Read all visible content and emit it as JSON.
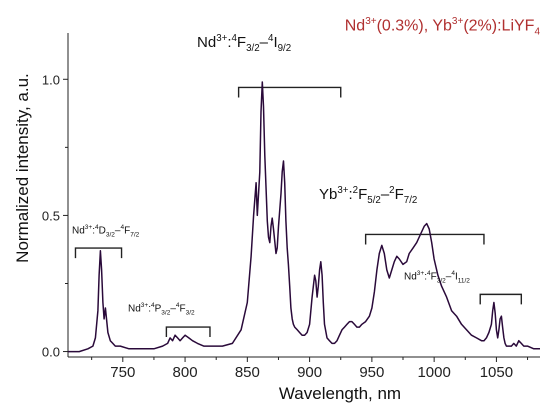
{
  "chart_data": {
    "type": "line",
    "title": "",
    "legend": {
      "ion1": "Nd",
      "ion1_charge": "3+",
      "ion1_conc": "(0.3%), ",
      "ion2": "Yb",
      "ion2_charge": "3+",
      "ion2_conc": "(2%):LiYF",
      "host_sub": "4",
      "color": "#b03030",
      "position": "top-right"
    },
    "xlabel": "Wavelength, nm",
    "ylabel": "Normalized intensity, a.u.",
    "xlim": [
      706,
      1085
    ],
    "ylim": [
      -0.02,
      1.17
    ],
    "xticks": [
      750,
      800,
      850,
      900,
      950,
      1000,
      1050
    ],
    "xtick_labels": [
      "750",
      "800",
      "850",
      "900",
      "950",
      "1000",
      "1050"
    ],
    "yticks": [
      0.0,
      0.5,
      1.0
    ],
    "ytick_labels": [
      "0.0",
      "0.5",
      "1.0"
    ],
    "grid": false,
    "line_color": "#2a0a3a",
    "series": [
      {
        "x": [
          706,
          715,
          722,
          726,
          728,
          730,
          731,
          732,
          733,
          734,
          735,
          736,
          738,
          740,
          742,
          744,
          748,
          755,
          765,
          775,
          782,
          786,
          788,
          790,
          792,
          794,
          796,
          798,
          800,
          803,
          806,
          810,
          815,
          822,
          830,
          838,
          845,
          850,
          853,
          855,
          857,
          858,
          860,
          861,
          862,
          863,
          864,
          866,
          867,
          868,
          869,
          870,
          871,
          873,
          874,
          875,
          877,
          878,
          879,
          880,
          881,
          882,
          883,
          884,
          885,
          886,
          887,
          888,
          890,
          892,
          894,
          896,
          898,
          900,
          902,
          904,
          905,
          906,
          907,
          908,
          909,
          910,
          911,
          912,
          914,
          916,
          918,
          920,
          922,
          924,
          926,
          928,
          930,
          932,
          934,
          936,
          938,
          940,
          942,
          945,
          948,
          950,
          952,
          954,
          956,
          958,
          960,
          962,
          964,
          966,
          968,
          970,
          972,
          975,
          978,
          980,
          983,
          986,
          989,
          992,
          994,
          996,
          998,
          1000,
          1003,
          1006,
          1010,
          1014,
          1018,
          1022,
          1026,
          1030,
          1034,
          1038,
          1040,
          1042,
          1044,
          1046,
          1047,
          1048,
          1049,
          1050,
          1051,
          1052,
          1053,
          1054,
          1055,
          1056,
          1057,
          1058,
          1060,
          1062,
          1064,
          1066,
          1068,
          1070,
          1072,
          1075,
          1080,
          1085
        ],
        "y": [
          0.0,
          0.0,
          0.01,
          0.02,
          0.05,
          0.15,
          0.28,
          0.37,
          0.3,
          0.18,
          0.12,
          0.16,
          0.07,
          0.04,
          0.03,
          0.02,
          0.02,
          0.01,
          0.01,
          0.01,
          0.02,
          0.03,
          0.05,
          0.04,
          0.06,
          0.05,
          0.04,
          0.05,
          0.06,
          0.05,
          0.04,
          0.03,
          0.02,
          0.02,
          0.02,
          0.03,
          0.08,
          0.18,
          0.35,
          0.5,
          0.62,
          0.5,
          0.66,
          0.88,
          0.99,
          0.9,
          0.72,
          0.48,
          0.42,
          0.4,
          0.46,
          0.49,
          0.45,
          0.36,
          0.38,
          0.46,
          0.58,
          0.66,
          0.7,
          0.62,
          0.48,
          0.38,
          0.32,
          0.24,
          0.16,
          0.12,
          0.1,
          0.09,
          0.08,
          0.07,
          0.06,
          0.06,
          0.07,
          0.1,
          0.2,
          0.28,
          0.26,
          0.2,
          0.24,
          0.3,
          0.33,
          0.28,
          0.18,
          0.1,
          0.05,
          0.04,
          0.03,
          0.03,
          0.04,
          0.06,
          0.08,
          0.09,
          0.1,
          0.11,
          0.11,
          0.1,
          0.09,
          0.09,
          0.1,
          0.11,
          0.13,
          0.16,
          0.22,
          0.3,
          0.36,
          0.39,
          0.36,
          0.3,
          0.27,
          0.3,
          0.33,
          0.35,
          0.34,
          0.32,
          0.33,
          0.36,
          0.38,
          0.4,
          0.43,
          0.46,
          0.47,
          0.45,
          0.4,
          0.34,
          0.28,
          0.24,
          0.2,
          0.15,
          0.13,
          0.1,
          0.08,
          0.06,
          0.05,
          0.04,
          0.04,
          0.05,
          0.07,
          0.1,
          0.15,
          0.18,
          0.14,
          0.08,
          0.05,
          0.08,
          0.12,
          0.13,
          0.09,
          0.05,
          0.03,
          0.02,
          0.02,
          0.02,
          0.03,
          0.02,
          0.04,
          0.03,
          0.02,
          0.02,
          0.01,
          0.01
        ]
      }
    ],
    "annotations": {
      "f92": {
        "ion": "Nd",
        "charge": "3+",
        "sep": ":",
        "sup1": "4",
        "lev1": "F",
        "sub1": "3/2",
        "dash": "–",
        "sup2": "4",
        "lev2": "I",
        "sub2": "9/2",
        "bracket_x": [
          843,
          925
        ],
        "bracket_y": 0.97
      },
      "yb": {
        "ion": "Yb",
        "charge": "3+",
        "sep": ":",
        "sup1": "2",
        "lev1": "F",
        "sub1": "5/2",
        "dash": "–",
        "sup2": "2",
        "lev2": "F",
        "sub2": "7/2",
        "bracket_x": [
          945,
          1040
        ],
        "bracket_y": 0.43
      },
      "d72": {
        "ion": "Nd",
        "charge": "3+",
        "sep": ":",
        "sup1": "4",
        "lev1": "D",
        "sub1": "3/2",
        "dash": "–",
        "sup2": "4",
        "lev2": "F",
        "sub2": "7/2",
        "bracket_x": [
          712,
          749
        ],
        "bracket_y": 0.38
      },
      "p32": {
        "ion": "Nd",
        "charge": "3+",
        "sep": ":",
        "sup1": "4",
        "lev1": "P",
        "sub1": "3/2",
        "dash": "–",
        "sup2": "4",
        "lev2": "F",
        "sub2": "3/2",
        "bracket_x": [
          785,
          820
        ],
        "bracket_y": 0.09
      },
      "f112": {
        "ion": "Nd",
        "charge": "3+",
        "sep": ":",
        "sup1": "4",
        "lev1": "F",
        "sub1": "3/2",
        "dash": "–",
        "sup2": "4",
        "lev2": "I",
        "sub2": "11/2",
        "bracket_x": [
          1037,
          1070
        ],
        "bracket_y": 0.21
      }
    }
  }
}
